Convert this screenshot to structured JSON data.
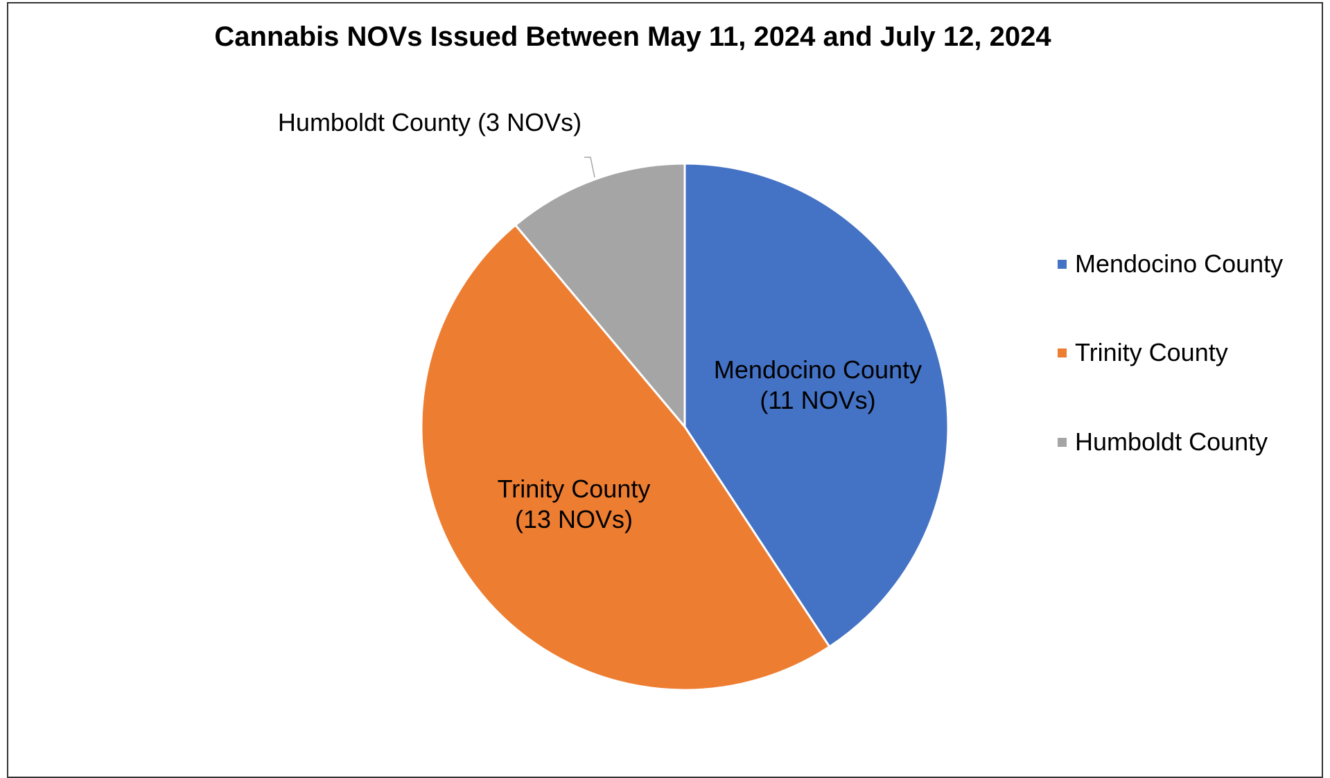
{
  "chart_data": {
    "type": "pie",
    "title": "Cannabis NOVs Issued Between May 11, 2024 and July 12, 2024",
    "series": [
      {
        "name": "Mendocino County",
        "value": 11,
        "color": "#4472c4",
        "label_lines": [
          "Mendocino County",
          "(11 NOVs)"
        ]
      },
      {
        "name": "Trinity County",
        "value": 13,
        "color": "#ed7d31",
        "label_lines": [
          "Trinity County",
          "(13 NOVs)"
        ]
      },
      {
        "name": "Humboldt County",
        "value": 3,
        "color": "#a5a5a5",
        "label_lines": [
          "Humboldt County (3 NOVs)"
        ]
      }
    ],
    "legend": {
      "placement": "right",
      "entries": [
        "Mendocino County",
        "Trinity County",
        "Humboldt County"
      ]
    }
  }
}
